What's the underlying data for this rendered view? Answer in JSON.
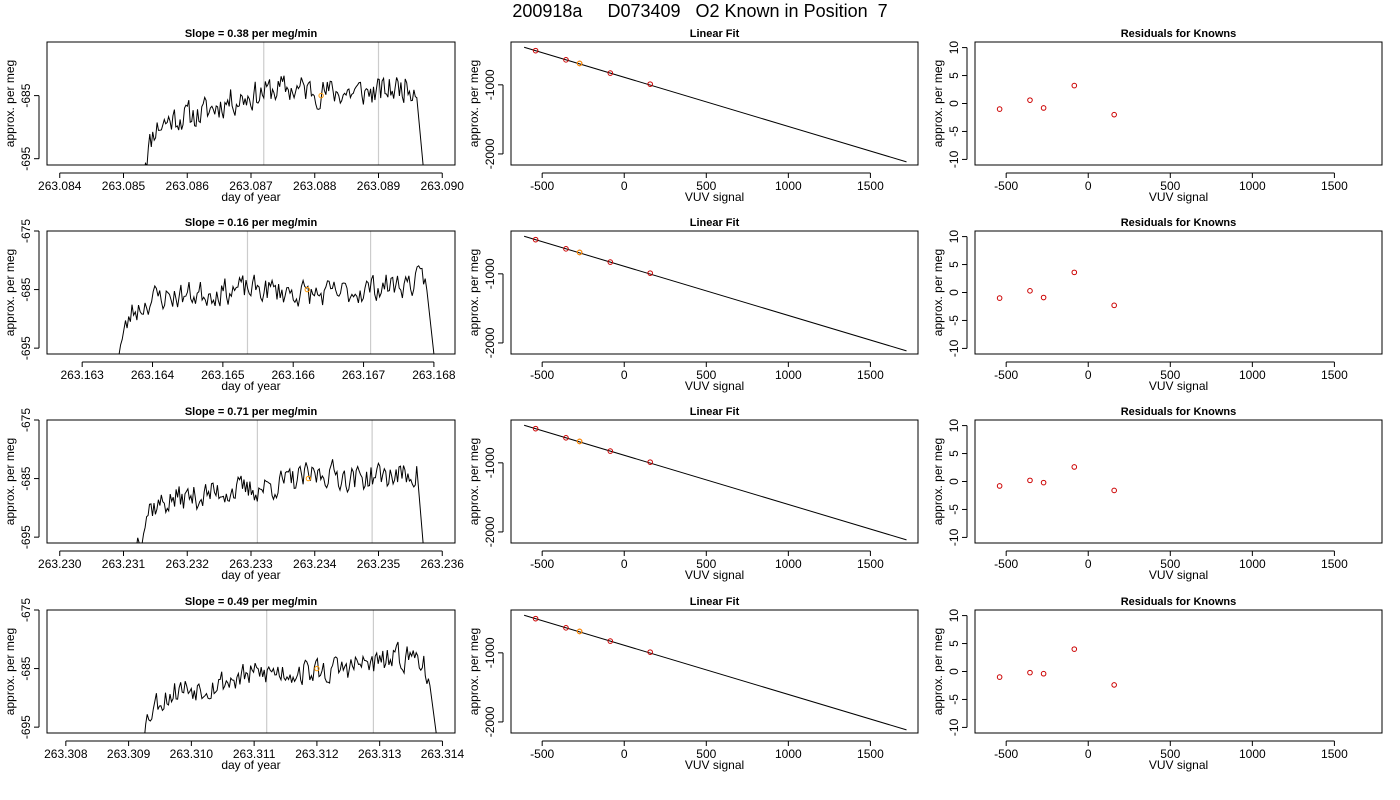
{
  "figure": {
    "title": "200918a     D073409   O2 Known in Position  7"
  },
  "colors": {
    "trace": "#000000",
    "marker_line": "#cccccc",
    "highlight_point": "#ff9900",
    "known_points": "#cc0000",
    "fit_line": "#000000"
  },
  "chart_data": [
    {
      "type": "line",
      "panel": "time-series",
      "row": 1,
      "title": "Slope =  0.38  per meg/min",
      "xlabel": "day of year",
      "ylabel": "approx. per meg",
      "xlim": [
        263.0838,
        263.0902
      ],
      "ylim": [
        -696.0,
        -676.5
      ],
      "xticks": [
        263.084,
        263.085,
        263.086,
        263.087,
        263.088,
        263.089,
        263.09
      ],
      "xtick_labels": [
        "263.084",
        "263.085",
        "263.086",
        "263.087",
        "263.088",
        "263.089",
        "263.090"
      ],
      "yticks": [
        -685,
        -695
      ],
      "ytick_labels": [
        "-685",
        "-695"
      ],
      "vlines": [
        263.0872,
        263.089
      ],
      "series": [
        {
          "x_start": 263.0853,
          "x_end": 263.0896,
          "seed": 11,
          "trend": 0.4,
          "keypoints": [
            [
              263.0853,
              -696
            ],
            [
              263.0855,
              -690
            ],
            [
              263.0858,
              -688.5
            ],
            [
              263.0862,
              -688
            ],
            [
              263.0866,
              -686
            ],
            [
              263.087,
              -685
            ],
            [
              263.0874,
              -684
            ],
            [
              263.0878,
              -684
            ],
            [
              263.0882,
              -684.5
            ],
            [
              263.0886,
              -684.5
            ],
            [
              263.089,
              -684.5
            ],
            [
              263.0894,
              -683.5
            ],
            [
              263.0896,
              -683.5
            ],
            [
              263.08965,
              -684
            ],
            [
              263.0897,
              -696
            ]
          ]
        }
      ],
      "marker": {
        "x": 263.0881,
        "y": -685
      }
    },
    {
      "type": "scatter",
      "panel": "linear-fit",
      "row": 1,
      "title": "Linear Fit",
      "xlabel": "VUV signal",
      "ylabel": "approx. per meg",
      "xlim": [
        -690,
        1790
      ],
      "ylim": [
        -2160,
        -380
      ],
      "xticks": [
        -500,
        0,
        500,
        1000,
        1500
      ],
      "xtick_labels": [
        "-500",
        "0",
        "500",
        "1000",
        "1500"
      ],
      "yticks": [
        -1000,
        -2000
      ],
      "ytick_labels": [
        "-1000",
        "-2000"
      ],
      "points": {
        "x": [
          -540,
          -355,
          -272,
          -85,
          158
        ],
        "y": [
          -505,
          -638,
          -690,
          -830,
          -990
        ]
      },
      "highlight": {
        "x": -272,
        "y": -690
      },
      "fit_line": {
        "x": [
          -610,
          1720
        ],
        "y": [
          -456,
          -2115
        ]
      }
    },
    {
      "type": "scatter",
      "panel": "residuals",
      "row": 1,
      "title": "Residuals for Knowns",
      "xlabel": "VUV signal",
      "ylabel": "approx. per meg",
      "xlim": [
        -690,
        1790
      ],
      "ylim": [
        -11,
        11
      ],
      "xticks": [
        -500,
        0,
        500,
        1000,
        1500
      ],
      "xtick_labels": [
        "-500",
        "0",
        "500",
        "1000",
        "1500"
      ],
      "yticks": [
        -10,
        -5,
        0,
        5,
        10
      ],
      "ytick_labels": [
        "-10",
        "-5",
        "0",
        "5",
        "10"
      ],
      "points": {
        "x": [
          -540,
          -355,
          -272,
          -85,
          158
        ],
        "y": [
          -1.0,
          0.6,
          -0.8,
          3.2,
          -2.0
        ]
      }
    },
    {
      "type": "line",
      "panel": "time-series",
      "row": 2,
      "title": "Slope =  0.16  per meg/min",
      "xlabel": "day of year",
      "ylabel": "approx. per meg",
      "xlim": [
        263.1625,
        263.1683
      ],
      "ylim": [
        -696.0,
        -675.0
      ],
      "xticks": [
        263.163,
        263.164,
        263.165,
        263.166,
        263.167,
        263.168
      ],
      "xtick_labels": [
        "263.163",
        "263.164",
        "263.165",
        "263.166",
        "263.167",
        "263.168"
      ],
      "yticks": [
        -675,
        -685,
        -695
      ],
      "ytick_labels": [
        "-675",
        "-685",
        "-695"
      ],
      "vlines": [
        263.16535,
        263.1671
      ],
      "series": [
        {
          "x_start": 263.1635,
          "x_end": 263.1679,
          "seed": 23,
          "trend": 0.25,
          "keypoints": [
            [
              263.1635,
              -696
            ],
            [
              263.1637,
              -689
            ],
            [
              263.164,
              -686.5
            ],
            [
              263.1644,
              -686
            ],
            [
              263.1648,
              -685.5
            ],
            [
              263.1652,
              -685
            ],
            [
              263.1656,
              -685
            ],
            [
              263.166,
              -685.5
            ],
            [
              263.1664,
              -686
            ],
            [
              263.1668,
              -685.5
            ],
            [
              263.1672,
              -684.5
            ],
            [
              263.1676,
              -684
            ],
            [
              263.1679,
              -683.5
            ],
            [
              263.16795,
              -686
            ],
            [
              263.168,
              -696
            ]
          ]
        }
      ],
      "marker": {
        "x": 263.1662,
        "y": -685
      }
    },
    {
      "type": "scatter",
      "panel": "linear-fit",
      "row": 2,
      "title": "Linear Fit",
      "xlabel": "VUV signal",
      "ylabel": "approx. per meg",
      "xlim": [
        -690,
        1790
      ],
      "ylim": [
        -2160,
        -380
      ],
      "xticks": [
        -500,
        0,
        500,
        1000,
        1500
      ],
      "xtick_labels": [
        "-500",
        "0",
        "500",
        "1000",
        "1500"
      ],
      "yticks": [
        -1000,
        -2000
      ],
      "ytick_labels": [
        "-1000",
        "-2000"
      ],
      "points": {
        "x": [
          -540,
          -355,
          -272,
          -85,
          158
        ],
        "y": [
          -505,
          -638,
          -690,
          -830,
          -990
        ]
      },
      "highlight": {
        "x": -272,
        "y": -690
      },
      "fit_line": {
        "x": [
          -610,
          1720
        ],
        "y": [
          -456,
          -2115
        ]
      }
    },
    {
      "type": "scatter",
      "panel": "residuals",
      "row": 2,
      "title": "Residuals for Knowns",
      "xlabel": "VUV signal",
      "ylabel": "approx. per meg",
      "xlim": [
        -690,
        1790
      ],
      "ylim": [
        -11,
        11
      ],
      "xticks": [
        -500,
        0,
        500,
        1000,
        1500
      ],
      "xtick_labels": [
        "-500",
        "0",
        "500",
        "1000",
        "1500"
      ],
      "yticks": [
        -10,
        -5,
        0,
        5,
        10
      ],
      "ytick_labels": [
        "-10",
        "-5",
        "0",
        "5",
        "10"
      ],
      "points": {
        "x": [
          -540,
          -355,
          -272,
          -85,
          158
        ],
        "y": [
          -1.0,
          0.3,
          -0.9,
          3.6,
          -2.3
        ]
      }
    },
    {
      "type": "line",
      "panel": "time-series",
      "row": 3,
      "title": "Slope =  0.71  per meg/min",
      "xlabel": "day of year",
      "ylabel": "approx. per meg",
      "xlim": [
        263.2298,
        263.2362
      ],
      "ylim": [
        -696.0,
        -675.0
      ],
      "xticks": [
        263.23,
        263.231,
        263.232,
        263.233,
        263.234,
        263.235,
        263.236
      ],
      "xtick_labels": [
        "263.230",
        "263.231",
        "263.232",
        "263.233",
        "263.234",
        "263.235",
        "263.236"
      ],
      "yticks": [
        -675,
        -685,
        -695
      ],
      "ytick_labels": [
        "-675",
        "-685",
        "-695"
      ],
      "vlines": [
        263.2331,
        263.2349
      ],
      "series": [
        {
          "x_start": 263.2312,
          "x_end": 263.2356,
          "seed": 37,
          "trend": 0.7,
          "keypoints": [
            [
              263.2312,
              -696
            ],
            [
              263.2314,
              -690
            ],
            [
              263.2318,
              -688.5
            ],
            [
              263.2322,
              -688
            ],
            [
              263.2326,
              -687
            ],
            [
              263.233,
              -687
            ],
            [
              263.2334,
              -686
            ],
            [
              263.2338,
              -685
            ],
            [
              263.2342,
              -684
            ],
            [
              263.2346,
              -685
            ],
            [
              263.235,
              -684.5
            ],
            [
              263.2354,
              -684.5
            ],
            [
              263.2356,
              -684
            ],
            [
              263.23565,
              -686
            ],
            [
              263.2357,
              -696
            ]
          ]
        }
      ],
      "marker": {
        "x": 263.2339,
        "y": -685
      }
    },
    {
      "type": "scatter",
      "panel": "linear-fit",
      "row": 3,
      "title": "Linear Fit",
      "xlabel": "VUV signal",
      "ylabel": "approx. per meg",
      "xlim": [
        -690,
        1790
      ],
      "ylim": [
        -2160,
        -380
      ],
      "xticks": [
        -500,
        0,
        500,
        1000,
        1500
      ],
      "xtick_labels": [
        "-500",
        "0",
        "500",
        "1000",
        "1500"
      ],
      "yticks": [
        -1000,
        -2000
      ],
      "ytick_labels": [
        "-1000",
        "-2000"
      ],
      "points": {
        "x": [
          -540,
          -355,
          -272,
          -85,
          158
        ],
        "y": [
          -505,
          -638,
          -690,
          -830,
          -990
        ]
      },
      "highlight": {
        "x": -272,
        "y": -690
      },
      "fit_line": {
        "x": [
          -610,
          1720
        ],
        "y": [
          -456,
          -2115
        ]
      }
    },
    {
      "type": "scatter",
      "panel": "residuals",
      "row": 3,
      "title": "Residuals for Knowns",
      "xlabel": "VUV signal",
      "ylabel": "approx. per meg",
      "xlim": [
        -690,
        1790
      ],
      "ylim": [
        -11,
        11
      ],
      "xticks": [
        -500,
        0,
        500,
        1000,
        1500
      ],
      "xtick_labels": [
        "-500",
        "0",
        "500",
        "1000",
        "1500"
      ],
      "yticks": [
        -10,
        -5,
        0,
        5,
        10
      ],
      "ytick_labels": [
        "-10",
        "-5",
        "0",
        "5",
        "10"
      ],
      "points": {
        "x": [
          -540,
          -355,
          -272,
          -85,
          158
        ],
        "y": [
          -0.8,
          0.2,
          -0.2,
          2.6,
          -1.6
        ]
      }
    },
    {
      "type": "line",
      "panel": "time-series",
      "row": 4,
      "title": "Slope =  0.49  per meg/min",
      "xlabel": "day of year",
      "ylabel": "approx. per meg",
      "xlim": [
        263.3077,
        263.3142
      ],
      "ylim": [
        -696.0,
        -675.0
      ],
      "xticks": [
        263.308,
        263.309,
        263.31,
        263.311,
        263.312,
        263.313,
        263.314
      ],
      "xtick_labels": [
        "263.308",
        "263.309",
        "263.310",
        "263.311",
        "263.312",
        "263.313",
        "263.314"
      ],
      "yticks": [
        -675,
        -685,
        -695
      ],
      "ytick_labels": [
        "-675",
        "-685",
        "-695"
      ],
      "vlines": [
        263.3112,
        263.3129
      ],
      "series": [
        {
          "x_start": 263.3092,
          "x_end": 263.3138,
          "seed": 53,
          "trend": 0.5,
          "keypoints": [
            [
              263.3092,
              -696
            ],
            [
              263.3094,
              -691
            ],
            [
              263.3098,
              -688.5
            ],
            [
              263.3102,
              -688
            ],
            [
              263.3106,
              -687
            ],
            [
              263.311,
              -686
            ],
            [
              263.3114,
              -685.5
            ],
            [
              263.3118,
              -685.5
            ],
            [
              263.3122,
              -685.5
            ],
            [
              263.3126,
              -684.5
            ],
            [
              263.313,
              -684
            ],
            [
              263.3134,
              -683
            ],
            [
              263.3137,
              -683
            ],
            [
              263.31375,
              -686
            ],
            [
              263.3139,
              -696
            ]
          ]
        }
      ],
      "marker": {
        "x": 263.312,
        "y": -685
      }
    },
    {
      "type": "scatter",
      "panel": "linear-fit",
      "row": 4,
      "title": "Linear Fit",
      "xlabel": "VUV signal",
      "ylabel": "approx. per meg",
      "xlim": [
        -690,
        1790
      ],
      "ylim": [
        -2160,
        -380
      ],
      "xticks": [
        -500,
        0,
        500,
        1000,
        1500
      ],
      "xtick_labels": [
        "-500",
        "0",
        "500",
        "1000",
        "1500"
      ],
      "yticks": [
        -1000,
        -2000
      ],
      "ytick_labels": [
        "-1000",
        "-2000"
      ],
      "points": {
        "x": [
          -540,
          -355,
          -272,
          -85,
          158
        ],
        "y": [
          -505,
          -638,
          -690,
          -830,
          -990
        ]
      },
      "highlight": {
        "x": -272,
        "y": -690
      },
      "fit_line": {
        "x": [
          -610,
          1720
        ],
        "y": [
          -456,
          -2115
        ]
      }
    },
    {
      "type": "scatter",
      "panel": "residuals",
      "row": 4,
      "title": "Residuals for Knowns",
      "xlabel": "VUV signal",
      "ylabel": "approx. per meg",
      "xlim": [
        -690,
        1790
      ],
      "ylim": [
        -11,
        11
      ],
      "xticks": [
        -500,
        0,
        500,
        1000,
        1500
      ],
      "xtick_labels": [
        "-500",
        "0",
        "500",
        "1000",
        "1500"
      ],
      "yticks": [
        -10,
        -5,
        0,
        5,
        10
      ],
      "ytick_labels": [
        "-10",
        "-5",
        "0",
        "5",
        "10"
      ],
      "points": {
        "x": [
          -540,
          -355,
          -272,
          -85,
          158
        ],
        "y": [
          -1.0,
          -0.2,
          -0.4,
          4.0,
          -2.4
        ]
      }
    }
  ]
}
